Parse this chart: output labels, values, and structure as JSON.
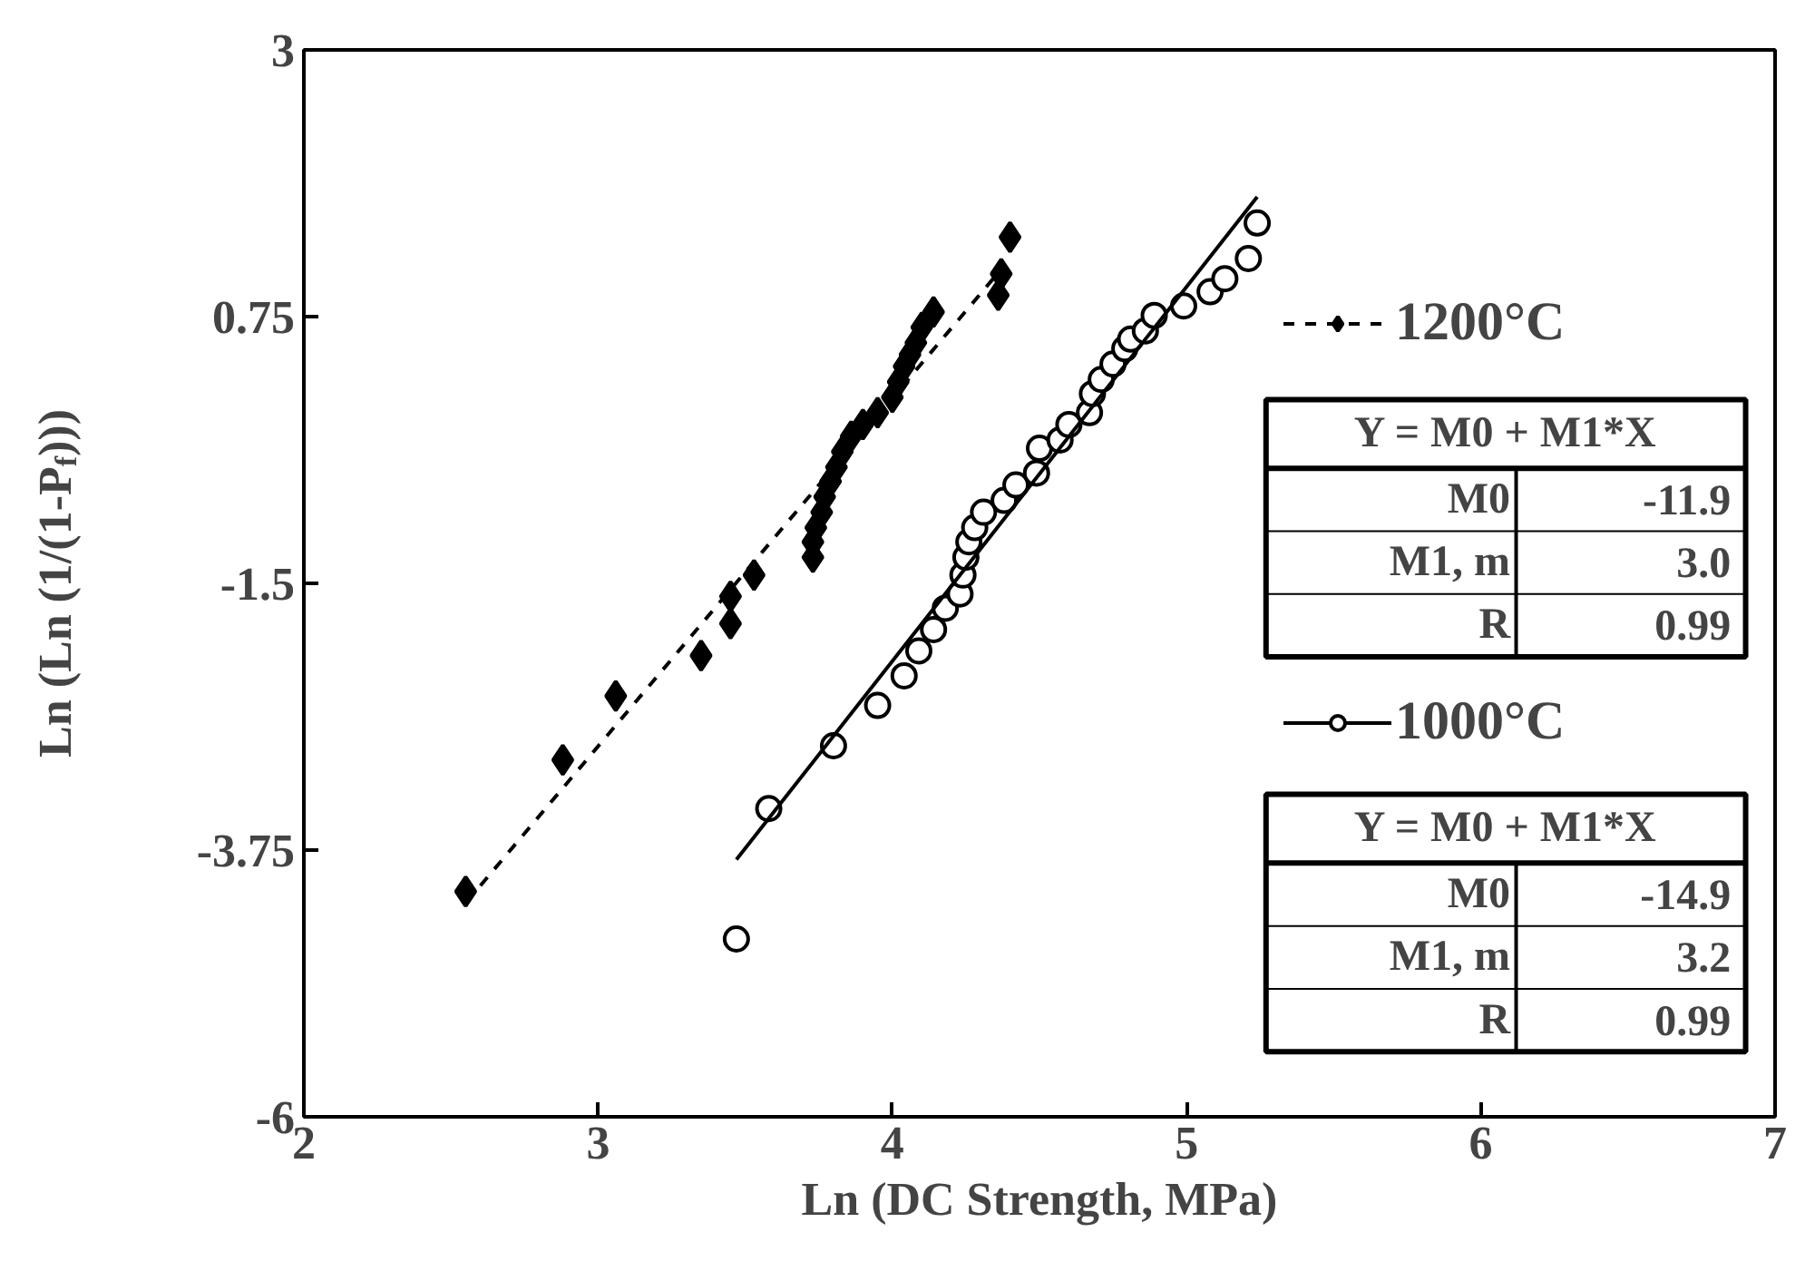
{
  "chart_data": {
    "type": "scatter",
    "xlabel": "Ln (DC Strength, MPa)",
    "ylabel": "Ln (Ln (1/(1-P$_{f}$)))",
    "xlim": [
      2,
      7
    ],
    "ylim": [
      -6,
      3
    ],
    "xticks": [
      2,
      3,
      4,
      5,
      6,
      7
    ],
    "yticks": [
      {
        "value": -6,
        "label": "-6"
      },
      {
        "value": -3.75,
        "label": "-3.75"
      },
      {
        "value": -1.5,
        "label": "-1.5"
      },
      0.75,
      3
    ],
    "grid": false,
    "legend": "right",
    "series": [
      {
        "name": "1200°C",
        "marker": "diamond",
        "color": "#000000",
        "x": [
          2.55,
          2.88,
          3.06,
          3.35,
          3.45,
          3.45,
          3.53,
          3.73,
          3.73,
          3.74,
          3.76,
          3.77,
          3.79,
          3.81,
          3.83,
          3.86,
          3.9,
          3.95,
          4.0,
          4.02,
          4.04,
          4.06,
          4.08,
          4.1,
          4.14,
          4.36,
          4.37,
          4.4
        ],
        "values": [
          -4.1,
          -2.99,
          -2.45,
          -2.11,
          -1.84,
          -1.61,
          -1.43,
          -1.28,
          -1.15,
          -1.03,
          -0.9,
          -0.77,
          -0.64,
          -0.52,
          -0.39,
          -0.26,
          -0.16,
          -0.06,
          0.07,
          0.2,
          0.33,
          0.43,
          0.53,
          0.66,
          0.79,
          0.93,
          1.11,
          1.42
        ]
      },
      {
        "type": "line",
        "line_style": "dashed",
        "color": "#000000",
        "x": [
          2.6,
          4.37
        ],
        "values": [
          -4.05,
          1.15
        ]
      },
      {
        "name": "1000°C",
        "marker": "circle",
        "color": "#000000",
        "x": [
          3.47,
          3.58,
          3.8,
          3.95,
          4.04,
          4.09,
          4.14,
          4.18,
          4.23,
          4.24,
          4.25,
          4.26,
          4.28,
          4.31,
          4.38,
          4.42,
          4.49,
          4.5,
          4.57,
          4.6,
          4.67,
          4.68,
          4.71,
          4.75,
          4.79,
          4.81,
          4.86,
          4.89,
          4.99,
          5.08,
          5.13,
          5.21,
          5.24
        ],
        "values": [
          -4.5,
          -3.4,
          -2.87,
          -2.53,
          -2.28,
          -2.07,
          -1.89,
          -1.71,
          -1.59,
          -1.43,
          -1.28,
          -1.15,
          -1.03,
          -0.9,
          -0.8,
          -0.67,
          -0.57,
          -0.36,
          -0.29,
          -0.16,
          -0.06,
          0.1,
          0.22,
          0.35,
          0.48,
          0.56,
          0.63,
          0.76,
          0.84,
          0.96,
          1.07,
          1.24,
          1.54
        ]
      },
      {
        "type": "line",
        "line_style": "solid",
        "color": "#000000",
        "x": [
          3.47,
          5.24
        ],
        "values": [
          -3.83,
          1.76
        ]
      }
    ],
    "annotations": [
      "Y = M0 + M1*X",
      "M0",
      "-11.9",
      "M1, m",
      "3.0",
      "R",
      "0.99",
      "Y = M0 + M1*X",
      "M0",
      "-14.9",
      "M1, m",
      "3.2",
      "R",
      "0.99"
    ]
  }
}
